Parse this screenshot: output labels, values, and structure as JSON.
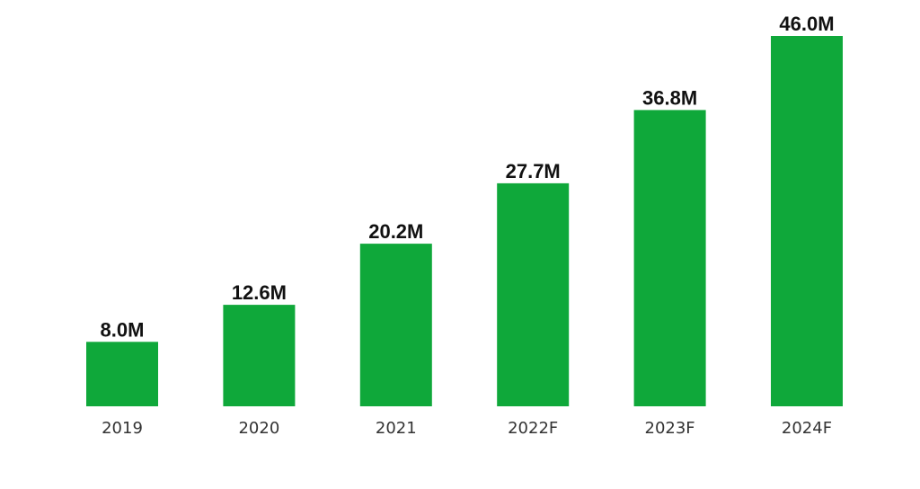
{
  "colors": {
    "bar": "#0fa83a",
    "background": "#ffffff",
    "value_text": "#111111",
    "tick_text": "#333333"
  },
  "chart_data": {
    "type": "bar",
    "categories": [
      "2019",
      "2020",
      "2021",
      "2022F",
      "2023F",
      "2024F"
    ],
    "values": [
      8.0,
      12.6,
      20.2,
      27.7,
      36.8,
      46.0
    ],
    "value_labels": [
      "8.0M",
      "12.6M",
      "20.2M",
      "27.7M",
      "36.8M",
      "46.0M"
    ],
    "title": "",
    "xlabel": "",
    "ylabel": "",
    "ylim": [
      0,
      46.0
    ],
    "grid": false,
    "legend": "none"
  }
}
